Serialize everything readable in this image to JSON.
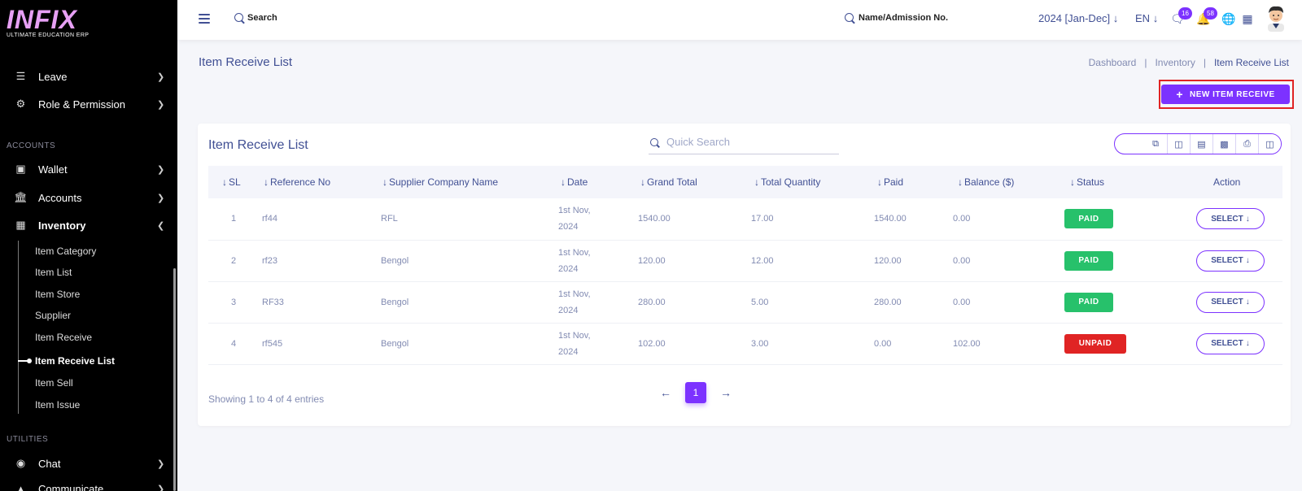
{
  "app": {
    "logo_text": "INFIX",
    "logo_subtitle": "ULTIMATE EDUCATION ERP"
  },
  "header": {
    "search_label": "Search",
    "student_search_label": "Name/Admission No.",
    "academic_year": "2024 [Jan-Dec]",
    "language": "EN",
    "chat_badge": "16",
    "notification_badge": "58"
  },
  "sidebar": {
    "items": [
      {
        "label": "Leave"
      },
      {
        "label": "Role & Permission"
      }
    ],
    "section_accounts": "ACCOUNTS",
    "accounts_items": [
      {
        "label": "Wallet"
      },
      {
        "label": "Accounts"
      },
      {
        "label": "Inventory"
      }
    ],
    "inventory_sub": [
      {
        "label": "Item Category"
      },
      {
        "label": "Item List"
      },
      {
        "label": "Item Store"
      },
      {
        "label": "Supplier"
      },
      {
        "label": "Item Receive"
      },
      {
        "label": "Item Receive List"
      },
      {
        "label": "Item Sell"
      },
      {
        "label": "Item Issue"
      }
    ],
    "section_utilities": "UTILITIES",
    "utilities_items": [
      {
        "label": "Chat"
      },
      {
        "label": "Communicate"
      }
    ]
  },
  "page": {
    "title": "Item Receive List",
    "breadcrumb": [
      "Dashboard",
      "Inventory",
      "Item Receive List"
    ],
    "breadcrumb_sep": "|",
    "new_button": "NEW ITEM RECEIVE"
  },
  "card": {
    "title": "Item Receive List",
    "quick_search_placeholder": "Quick Search",
    "columns": [
      "SL",
      "Reference No",
      "Supplier Company Name",
      "Date",
      "Grand Total",
      "Total Quantity",
      "Paid",
      "Balance ($)",
      "Status",
      "Action"
    ],
    "rows": [
      {
        "sl": "1",
        "ref": "rf44",
        "supplier": "RFL",
        "date1": "1st Nov,",
        "date2": "2024",
        "grand_total": "1540.00",
        "qty": "17.00",
        "paid": "1540.00",
        "balance": "0.00",
        "status": "PAID",
        "action": "SELECT"
      },
      {
        "sl": "2",
        "ref": "rf23",
        "supplier": "Bengol",
        "date1": "1st Nov,",
        "date2": "2024",
        "grand_total": "120.00",
        "qty": "12.00",
        "paid": "120.00",
        "balance": "0.00",
        "status": "PAID",
        "action": "SELECT"
      },
      {
        "sl": "3",
        "ref": "RF33",
        "supplier": "Bengol",
        "date1": "1st Nov,",
        "date2": "2024",
        "grand_total": "280.00",
        "qty": "5.00",
        "paid": "280.00",
        "balance": "0.00",
        "status": "PAID",
        "action": "SELECT"
      },
      {
        "sl": "4",
        "ref": "rf545",
        "supplier": "Bengol",
        "date1": "1st Nov,",
        "date2": "2024",
        "grand_total": "102.00",
        "qty": "3.00",
        "paid": "0.00",
        "balance": "102.00",
        "status": "UNPAID",
        "action": "SELECT"
      }
    ],
    "showing_text": "Showing 1 to 4 of 4 entries",
    "current_page": "1"
  },
  "colors": {
    "accent": "#7c32ff",
    "paid": "#27c16b",
    "unpaid": "#e02424",
    "text": "#415094"
  }
}
